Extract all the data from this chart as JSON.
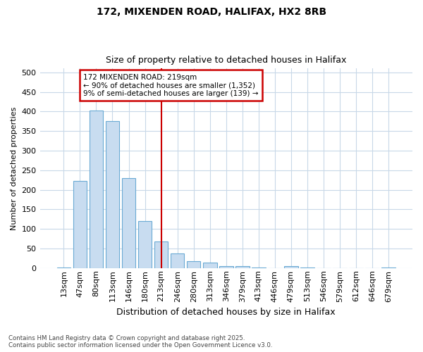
{
  "title1": "172, MIXENDEN ROAD, HALIFAX, HX2 8RB",
  "title2": "Size of property relative to detached houses in Halifax",
  "xlabel": "Distribution of detached houses by size in Halifax",
  "ylabel": "Number of detached properties",
  "categories": [
    "13sqm",
    "47sqm",
    "80sqm",
    "113sqm",
    "146sqm",
    "180sqm",
    "213sqm",
    "246sqm",
    "280sqm",
    "313sqm",
    "346sqm",
    "379sqm",
    "413sqm",
    "446sqm",
    "479sqm",
    "513sqm",
    "546sqm",
    "579sqm",
    "612sqm",
    "646sqm",
    "679sqm"
  ],
  "values": [
    2,
    222,
    402,
    375,
    230,
    120,
    68,
    38,
    17,
    14,
    5,
    5,
    2,
    0,
    5,
    2,
    0,
    0,
    0,
    0,
    1
  ],
  "bar_color": "#c8dcf0",
  "bar_edge_color": "#6aaad4",
  "vline_index": 6,
  "vline_color": "#cc0000",
  "annotation_line1": "172 MIXENDEN ROAD: 219sqm",
  "annotation_line2": "← 90% of detached houses are smaller (1,352)",
  "annotation_line3": "9% of semi-detached houses are larger (139) →",
  "annotation_box_color": "#cc0000",
  "ylim": [
    0,
    510
  ],
  "yticks": [
    0,
    50,
    100,
    150,
    200,
    250,
    300,
    350,
    400,
    450,
    500
  ],
  "background_color": "#ffffff",
  "plot_bg_color": "#ffffff",
  "grid_color": "#c8d8e8",
  "footer1": "Contains HM Land Registry data © Crown copyright and database right 2025.",
  "footer2": "Contains public sector information licensed under the Open Government Licence v3.0."
}
